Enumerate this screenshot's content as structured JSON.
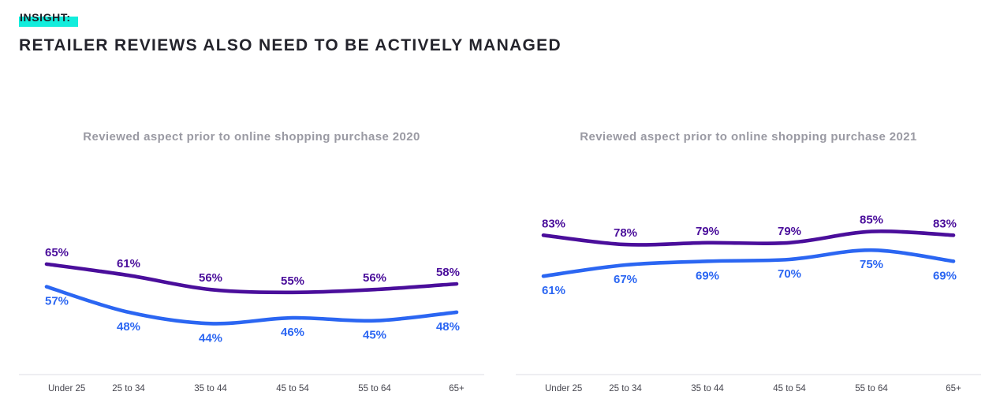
{
  "header": {
    "insight_label": "INSIGHT:",
    "title": "RETAILER REVIEWS ALSO NEED TO BE ACTIVELY MANAGED"
  },
  "colors": {
    "highlight_teal": "#12EDDC",
    "heading_text": "#24242c",
    "chart_title_gray": "#9a9aa3",
    "axis_line": "#e3e3e9",
    "tick_text": "#45454e",
    "purple": "#4A0E9B",
    "blue": "#2B66F2"
  },
  "chart_data": [
    {
      "type": "line",
      "title": "Reviewed aspect prior to online shopping purchase 2020",
      "categories": [
        "Under 25",
        "25 to 34",
        "35 to 44",
        "45 to 54",
        "55 to 64",
        "65+"
      ],
      "series": [
        {
          "name": "purple",
          "color": "#4A0E9B",
          "label_position": "above",
          "values": [
            65,
            61,
            56,
            55,
            56,
            58
          ]
        },
        {
          "name": "blue",
          "color": "#2B66F2",
          "label_position": "below",
          "values": [
            57,
            48,
            44,
            46,
            45,
            48
          ]
        }
      ],
      "value_suffix": "%",
      "ylim": [
        26,
        85
      ],
      "grid": false,
      "legend": "none",
      "xlabel": "",
      "ylabel": ""
    },
    {
      "type": "line",
      "title": "Reviewed aspect prior to online shopping purchase 2021",
      "categories": [
        "Under 25",
        "25 to 34",
        "35 to 44",
        "45 to 54",
        "55 to 64",
        "65+"
      ],
      "series": [
        {
          "name": "purple",
          "color": "#4A0E9B",
          "label_position": "above",
          "values": [
            83,
            78,
            79,
            79,
            85,
            83
          ]
        },
        {
          "name": "blue",
          "color": "#2B66F2",
          "label_position": "below",
          "values": [
            61,
            67,
            69,
            70,
            75,
            69
          ]
        }
      ],
      "value_suffix": "%",
      "ylim": [
        8,
        98
      ],
      "grid": false,
      "legend": "none",
      "xlabel": "",
      "ylabel": ""
    }
  ]
}
